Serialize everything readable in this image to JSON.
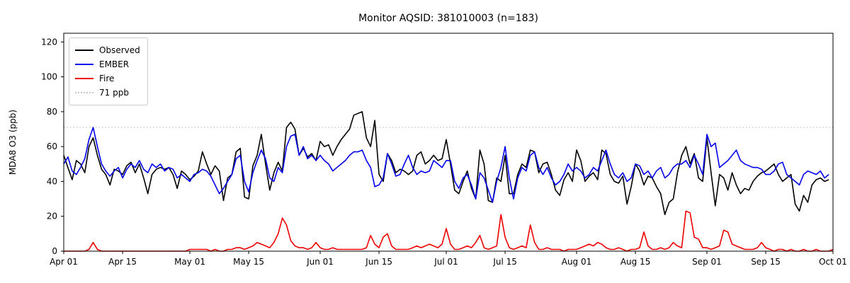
{
  "figure": {
    "title": "Monitor AQSID: 381010003 (n=183)",
    "ylabel": "MDA8 O3 (ppb)"
  },
  "chart_data": {
    "type": "line",
    "title": "Monitor AQSID: 381010003 (n=183)",
    "xlabel": "",
    "ylabel": "MDA8 O3 (ppb)",
    "ylim": [
      0,
      125
    ],
    "yticks": [
      0,
      20,
      40,
      60,
      80,
      100,
      120
    ],
    "x_total_days": 183,
    "x_ticks": [
      {
        "label": "Apr 01",
        "day": 0
      },
      {
        "label": "Apr 15",
        "day": 14
      },
      {
        "label": "May 01",
        "day": 30
      },
      {
        "label": "May 15",
        "day": 44
      },
      {
        "label": "Jun 01",
        "day": 61
      },
      {
        "label": "Jun 15",
        "day": 75
      },
      {
        "label": "Jul 01",
        "day": 91
      },
      {
        "label": "Jul 15",
        "day": 105
      },
      {
        "label": "Aug 01",
        "day": 122
      },
      {
        "label": "Aug 15",
        "day": 136
      },
      {
        "label": "Sep 01",
        "day": 153
      },
      {
        "label": "Sep 15",
        "day": 167
      },
      {
        "label": "Oct 01",
        "day": 183
      }
    ],
    "threshold": {
      "label": "71 ppb",
      "value": 71,
      "color": "#c8c8c8",
      "style": "dotted"
    },
    "legend_position": "upper left",
    "grid": false,
    "series": [
      {
        "name": "Observed",
        "color": "#000000",
        "values": [
          55,
          48,
          41,
          52,
          50,
          45,
          60,
          65,
          55,
          47,
          44,
          38,
          47,
          46,
          44,
          49,
          51,
          45,
          50,
          42,
          33,
          44,
          47,
          48,
          47,
          48,
          44,
          36,
          46,
          44,
          41,
          43,
          46,
          57,
          50,
          44,
          49,
          46,
          29,
          42,
          44,
          57,
          59,
          31,
          30,
          49,
          55,
          67,
          50,
          35,
          45,
          51,
          46,
          71,
          74,
          70,
          55,
          59,
          54,
          56,
          52,
          63,
          60,
          61,
          55,
          60,
          64,
          67,
          70,
          78,
          79,
          80,
          65,
          60,
          75,
          44,
          40,
          56,
          52,
          45,
          47,
          46,
          44,
          46,
          55,
          57,
          50,
          52,
          55,
          52,
          53,
          64,
          50,
          35,
          33,
          40,
          46,
          36,
          30,
          58,
          50,
          29,
          28,
          42,
          40,
          55,
          33,
          33,
          44,
          50,
          48,
          58,
          57,
          45,
          50,
          51,
          44,
          35,
          32,
          41,
          45,
          40,
          58,
          52,
          40,
          43,
          45,
          41,
          58,
          56,
          44,
          40,
          39,
          43,
          27,
          37,
          50,
          46,
          38,
          43,
          42,
          37,
          33,
          21,
          28,
          30,
          45,
          55,
          60,
          50,
          56,
          42,
          40,
          65,
          45,
          26,
          44,
          42,
          35,
          45,
          38,
          33,
          36,
          35,
          40,
          43,
          45,
          46,
          48,
          50,
          44,
          40,
          42,
          44,
          27,
          23,
          32,
          28,
          38,
          41,
          42,
          40,
          41
        ]
      },
      {
        "name": "EMBER",
        "color": "#0000ee",
        "values": [
          50,
          54,
          46,
          44,
          48,
          53,
          64,
          71,
          60,
          50,
          46,
          43,
          46,
          48,
          42,
          47,
          50,
          48,
          52,
          47,
          45,
          50,
          48,
          50,
          46,
          48,
          47,
          42,
          44,
          42,
          40,
          44,
          45,
          47,
          46,
          43,
          38,
          33,
          36,
          40,
          44,
          53,
          55,
          40,
          34,
          45,
          52,
          58,
          53,
          42,
          40,
          48,
          45,
          60,
          66,
          67,
          55,
          60,
          53,
          55,
          52,
          55,
          52,
          50,
          46,
          48,
          50,
          52,
          55,
          57,
          57,
          58,
          52,
          48,
          37,
          38,
          42,
          56,
          50,
          43,
          44,
          50,
          55,
          48,
          44,
          46,
          45,
          46,
          52,
          50,
          48,
          52,
          52,
          40,
          36,
          42,
          44,
          38,
          30,
          45,
          42,
          35,
          28,
          40,
          48,
          60,
          42,
          30,
          42,
          48,
          46,
          55,
          57,
          48,
          44,
          48,
          42,
          38,
          40,
          44,
          50,
          46,
          48,
          46,
          42,
          44,
          48,
          46,
          52,
          58,
          50,
          44,
          42,
          45,
          40,
          42,
          50,
          49,
          44,
          46,
          42,
          46,
          48,
          42,
          44,
          48,
          50,
          50,
          52,
          48,
          55,
          50,
          44,
          67,
          60,
          62,
          48,
          50,
          52,
          55,
          58,
          52,
          50,
          49,
          48,
          48,
          47,
          44,
          44,
          46,
          50,
          51,
          44,
          42,
          40,
          38,
          44,
          46,
          45,
          44,
          46,
          42,
          44
        ]
      },
      {
        "name": "Fire",
        "color": "#ee0000",
        "values": [
          0,
          0,
          0,
          0,
          0,
          0,
          1,
          5,
          1,
          0,
          0,
          0,
          0,
          0,
          0,
          0,
          0,
          0,
          0,
          0,
          0,
          0,
          0,
          0,
          0,
          0,
          0,
          0,
          0,
          0,
          1,
          1,
          1,
          1,
          1,
          0,
          1,
          0,
          0,
          1,
          1,
          2,
          2,
          1,
          2,
          3,
          5,
          4,
          3,
          2,
          5,
          10,
          19,
          15,
          6,
          3,
          2,
          2,
          1,
          2,
          5,
          2,
          1,
          1,
          2,
          1,
          1,
          1,
          1,
          1,
          1,
          1,
          2,
          9,
          4,
          2,
          8,
          10,
          3,
          1,
          1,
          1,
          1,
          2,
          3,
          2,
          3,
          4,
          3,
          2,
          4,
          13,
          4,
          1,
          1,
          2,
          3,
          2,
          5,
          9,
          2,
          1,
          2,
          3,
          21,
          8,
          2,
          1,
          2,
          3,
          2,
          15,
          5,
          1,
          1,
          2,
          1,
          1,
          1,
          0,
          1,
          1,
          1,
          2,
          3,
          4,
          3,
          5,
          4,
          2,
          1,
          1,
          2,
          1,
          0,
          1,
          1,
          2,
          11,
          3,
          1,
          1,
          2,
          1,
          2,
          5,
          3,
          2,
          23,
          22,
          8,
          7,
          2,
          2,
          1,
          2,
          3,
          12,
          11,
          4,
          3,
          2,
          1,
          1,
          1,
          2,
          5,
          2,
          1,
          0,
          1,
          1,
          0,
          1,
          0,
          0,
          1,
          0,
          0,
          1,
          0,
          0,
          0,
          1
        ]
      }
    ]
  }
}
